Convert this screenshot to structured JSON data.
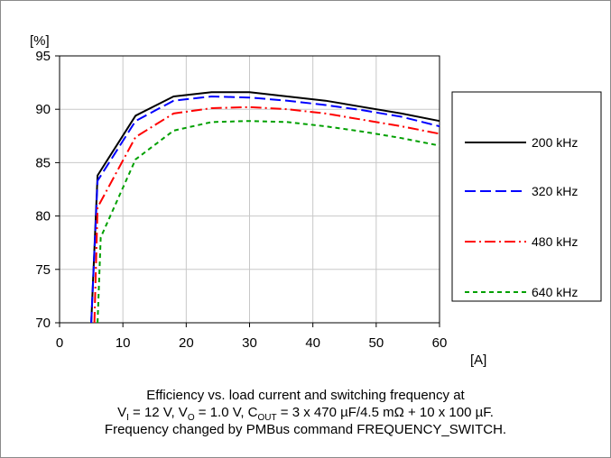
{
  "chart_data": {
    "type": "line",
    "y_unit": "[%]",
    "x_unit": "[A]",
    "xlim": [
      0,
      60
    ],
    "ylim": [
      70,
      95
    ],
    "x_ticks": [
      0,
      10,
      20,
      30,
      40,
      50,
      60
    ],
    "y_ticks": [
      70,
      75,
      80,
      85,
      90,
      95
    ],
    "grid": true,
    "legend_position": "right",
    "series": [
      {
        "name": "200 kHz",
        "color": "#000000",
        "dash": "solid",
        "x": [
          5,
          6,
          12,
          18,
          24,
          30,
          36,
          42,
          48,
          54,
          60
        ],
        "y": [
          70,
          83.8,
          89.4,
          91.2,
          91.6,
          91.6,
          91.2,
          90.8,
          90.2,
          89.6,
          88.9
        ]
      },
      {
        "name": "320 kHz",
        "color": "#0000ff",
        "dash": "dashed",
        "x": [
          5,
          6,
          12,
          18,
          24,
          30,
          36,
          42,
          48,
          54,
          60
        ],
        "y": [
          70,
          83.3,
          88.9,
          90.8,
          91.2,
          91.1,
          90.8,
          90.4,
          89.9,
          89.3,
          88.4
        ]
      },
      {
        "name": "480 kHz",
        "color": "#ff0000",
        "dash": "dashdot",
        "x": [
          5.5,
          6,
          12,
          18,
          24,
          30,
          36,
          42,
          48,
          54,
          60
        ],
        "y": [
          70,
          80.8,
          87.4,
          89.6,
          90.1,
          90.2,
          90,
          89.6,
          89,
          88.4,
          87.7
        ]
      },
      {
        "name": "640 kHz",
        "color": "#00a000",
        "dash": "dotted",
        "x": [
          6,
          6.5,
          12,
          18,
          24,
          30,
          36,
          42,
          48,
          54,
          60
        ],
        "y": [
          70,
          78,
          85.3,
          88,
          88.8,
          88.9,
          88.8,
          88.4,
          87.9,
          87.3,
          86.6
        ]
      }
    ]
  },
  "caption": {
    "line1": "Efficiency vs. load current and switching frequency at",
    "line2_vi_pre": "V",
    "line2_vi_sub": "I",
    "line2_vi_post": " = 12 V, ",
    "line2_vo_pre": "V",
    "line2_vo_sub": "O",
    "line2_vo_post": " = 1.0 V, ",
    "line2_cout_pre": "C",
    "line2_cout_sub": "OUT",
    "line2_cout_post": " = 3 x 470 µF/4.5 mΩ + 10 x 100 µF.",
    "line3": "Frequency changed by PMBus command FREQUENCY_SWITCH."
  }
}
